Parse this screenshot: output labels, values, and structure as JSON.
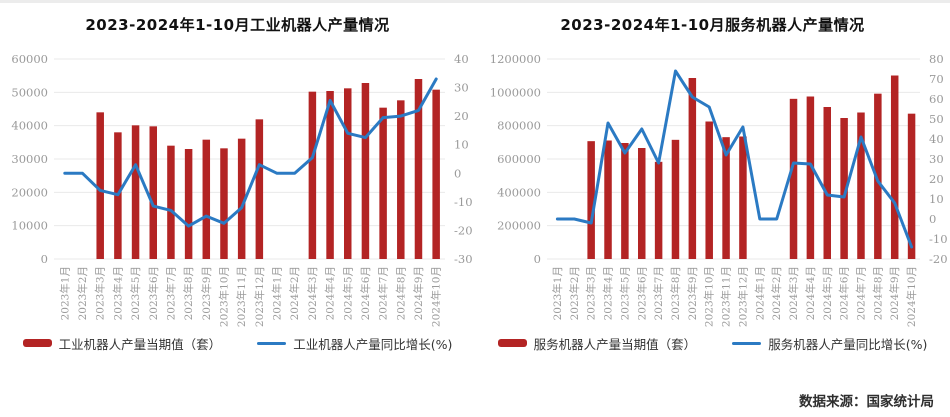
{
  "colors": {
    "bar": "#b32424",
    "line": "#2b7ac3",
    "grid": "#e9e9e9",
    "axis_label": "#9a9a9a",
    "title": "#111111",
    "legend_text": "#333333"
  },
  "footer": {
    "source_note": "数据来源：国家统计局"
  },
  "chart_data": [
    {
      "type": "bar+line",
      "title": "2023-2024年1-10月工业机器人产量情况",
      "categories": [
        "2023年1月",
        "2023年2月",
        "2023年3月",
        "2023年4月",
        "2023年5月",
        "2023年6月",
        "2023年7月",
        "2023年8月",
        "2023年9月",
        "2023年10月",
        "2023年11月",
        "2023年12月",
        "2024年1月",
        "2024年2月",
        "2024年3月",
        "2024年4月",
        "2024年5月",
        "2024年6月",
        "2024年7月",
        "2024年8月",
        "2024年9月",
        "2024年10月"
      ],
      "series": [
        {
          "name": "工业机器人产量当期值（套）",
          "type": "bar",
          "axis": "left",
          "values": [
            null,
            null,
            44000,
            38000,
            40100,
            39800,
            34000,
            33000,
            35800,
            33200,
            36100,
            41900,
            null,
            null,
            50200,
            50400,
            51200,
            52800,
            45400,
            47600,
            54000,
            50800
          ]
        },
        {
          "name": "工业机器人产量同比增长(%)",
          "type": "line",
          "axis": "right",
          "values": [
            0,
            0,
            -6,
            -7.5,
            3,
            -11.5,
            -13,
            -18.5,
            -15,
            -17.5,
            -12,
            3,
            0,
            0,
            5.5,
            25.5,
            14,
            12.5,
            19.5,
            20,
            22,
            33
          ]
        }
      ],
      "left_axis": {
        "min": 0,
        "max": 60000,
        "step": 10000
      },
      "right_axis": {
        "min": -30,
        "max": 40,
        "step": 10
      },
      "plot_left": 56,
      "grid": "on",
      "legend_position": "bottom"
    },
    {
      "type": "bar+line",
      "title": "2023-2024年1-10月服务机器人产量情况",
      "categories": [
        "2023年1月",
        "2023年2月",
        "2023年3月",
        "2023年4月",
        "2023年5月",
        "2023年6月",
        "2023年7月",
        "2023年8月",
        "2023年9月",
        "2023年10月",
        "2023年11月",
        "2023年12月",
        "2024年1月",
        "2024年2月",
        "2024年3月",
        "2024年4月",
        "2024年5月",
        "2024年6月",
        "2024年7月",
        "2024年8月",
        "2024年9月",
        "2024年10月"
      ],
      "series": [
        {
          "name": "服务机器人产量当期值（套）",
          "type": "bar",
          "axis": "left",
          "values": [
            null,
            null,
            707000,
            711000,
            696000,
            666000,
            583000,
            715000,
            1086000,
            825000,
            731000,
            735000,
            null,
            null,
            961000,
            975000,
            912000,
            846000,
            879000,
            992000,
            1101000,
            872000
          ]
        },
        {
          "name": "服务机器人产量同比增长(%)",
          "type": "line",
          "axis": "right",
          "values": [
            0,
            0,
            -2,
            48,
            33,
            45,
            28,
            74,
            61,
            56,
            32,
            46,
            0,
            0,
            28,
            27.5,
            12,
            11,
            41,
            19,
            8,
            -14
          ]
        }
      ],
      "left_axis": {
        "min": 0,
        "max": 1200000,
        "step": 200000
      },
      "right_axis": {
        "min": -20,
        "max": 80,
        "step": 10
      },
      "plot_left": 74,
      "grid": "on",
      "legend_position": "bottom"
    }
  ]
}
